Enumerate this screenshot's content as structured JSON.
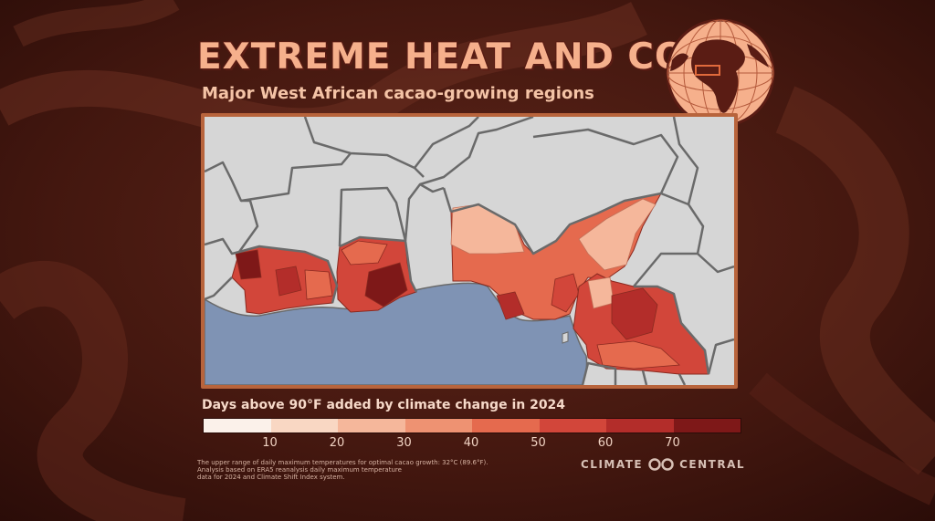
{
  "title": "EXTREME HEAT AND COCOA",
  "subtitle": "Major West African cacao-growing regions",
  "legend": {
    "title": "Days above 90°F added by climate change in 2024",
    "colors": [
      "#fbf1ea",
      "#f9d7c3",
      "#f5b79b",
      "#ee9272",
      "#e56a4e",
      "#d2463a",
      "#b32d2a",
      "#7e1818"
    ],
    "ticks": [
      "10",
      "20",
      "30",
      "40",
      "50",
      "60",
      "70"
    ]
  },
  "source_note": [
    "The upper range of daily maximum temperatures for optimal cacao growth: 32°C (89.6°F).",
    "Analysis based on ERA5 reanalysis daily maximum temperature",
    "data for 2024 and Climate Shift Index system."
  ],
  "logo": {
    "left": "CLIMATE",
    "right": "CENTRAL"
  },
  "map": {
    "land_color": "#d6d6d6",
    "ocean_color": "#7f93b4",
    "border_color": "#6a6a6a",
    "regions": [
      "Côte d'Ivoire",
      "Ghana",
      "Nigeria",
      "Cameroon"
    ]
  }
}
